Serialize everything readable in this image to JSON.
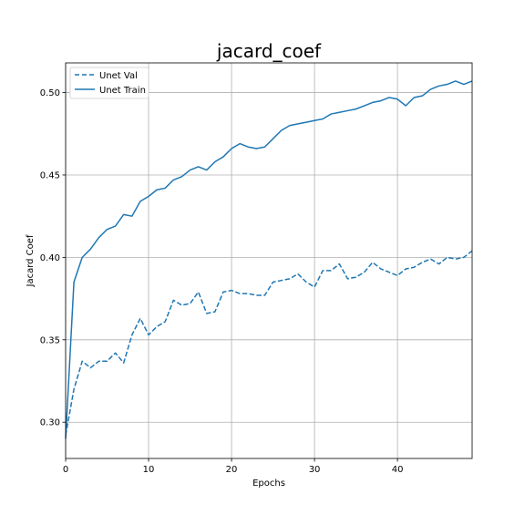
{
  "chart_data": {
    "type": "line",
    "title": "jacard_coef",
    "xlabel": "Epochs",
    "ylabel": "Jacard Coef",
    "xlim": [
      0,
      49
    ],
    "ylim": [
      0.278,
      0.518
    ],
    "xticks": [
      0,
      10,
      20,
      30,
      40
    ],
    "yticks": [
      0.3,
      0.35,
      0.4,
      0.45,
      0.5
    ],
    "xtick_labels": [
      "0",
      "10",
      "20",
      "30",
      "40"
    ],
    "ytick_labels": [
      "0.30",
      "0.35",
      "0.40",
      "0.45",
      "0.50"
    ],
    "grid": true,
    "legend_position": "top-left",
    "x": [
      0,
      1,
      2,
      3,
      4,
      5,
      6,
      7,
      8,
      9,
      10,
      11,
      12,
      13,
      14,
      15,
      16,
      17,
      18,
      19,
      20,
      21,
      22,
      23,
      24,
      25,
      26,
      27,
      28,
      29,
      30,
      31,
      32,
      33,
      34,
      35,
      36,
      37,
      38,
      39,
      40,
      41,
      42,
      43,
      44,
      45,
      46,
      47,
      48,
      49
    ],
    "series": [
      {
        "name": "Unet Val",
        "style": "dashed",
        "color": "#1f77b4",
        "values": [
          0.292,
          0.32,
          0.337,
          0.333,
          0.337,
          0.337,
          0.342,
          0.336,
          0.353,
          0.363,
          0.353,
          0.358,
          0.361,
          0.374,
          0.371,
          0.372,
          0.379,
          0.366,
          0.367,
          0.379,
          0.38,
          0.378,
          0.378,
          0.377,
          0.377,
          0.385,
          0.386,
          0.387,
          0.39,
          0.385,
          0.382,
          0.392,
          0.392,
          0.396,
          0.387,
          0.388,
          0.391,
          0.397,
          0.393,
          0.391,
          0.389,
          0.393,
          0.394,
          0.397,
          0.399,
          0.396,
          0.4,
          0.399,
          0.4,
          0.404
        ]
      },
      {
        "name": "Unet Train",
        "style": "solid",
        "color": "#1f77b4",
        "values": [
          0.29,
          0.385,
          0.4,
          0.405,
          0.412,
          0.417,
          0.419,
          0.426,
          0.425,
          0.434,
          0.437,
          0.441,
          0.442,
          0.447,
          0.449,
          0.453,
          0.455,
          0.453,
          0.458,
          0.461,
          0.466,
          0.469,
          0.467,
          0.466,
          0.467,
          0.472,
          0.477,
          0.48,
          0.481,
          0.482,
          0.483,
          0.484,
          0.487,
          0.488,
          0.489,
          0.49,
          0.492,
          0.494,
          0.495,
          0.497,
          0.496,
          0.492,
          0.497,
          0.498,
          0.502,
          0.504,
          0.505,
          0.507,
          0.505,
          0.507
        ]
      }
    ]
  }
}
